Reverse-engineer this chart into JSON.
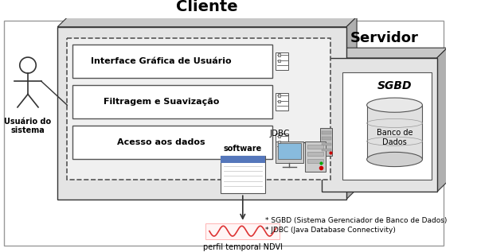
{
  "bg_color": "#ffffff",
  "cliente_label": "Cliente",
  "servidor_label": "Servidor",
  "sgbd_label": "SGBD",
  "banco_label": "Banco de\nDados",
  "jdbc_label": "JDBC",
  "software_label": "software",
  "perfil_label": "perfil temporal NDVI",
  "usuario_label": "Usuário do\nsistema",
  "box_labels": [
    "Interface Gráfica de Usuário",
    "Filtragem e Suavização",
    "Acesso aos dados"
  ],
  "footnote1": "* SGBD (Sistema Gerenciador de Banco de Dados)",
  "footnote2": "* JDBC (Java Database Connectivity)",
  "gray_top": "#c8c8c8",
  "gray_side": "#b0b0b0",
  "gray_face": "#e4e4e4",
  "white": "#ffffff",
  "dark": "#333333",
  "mid": "#888888"
}
